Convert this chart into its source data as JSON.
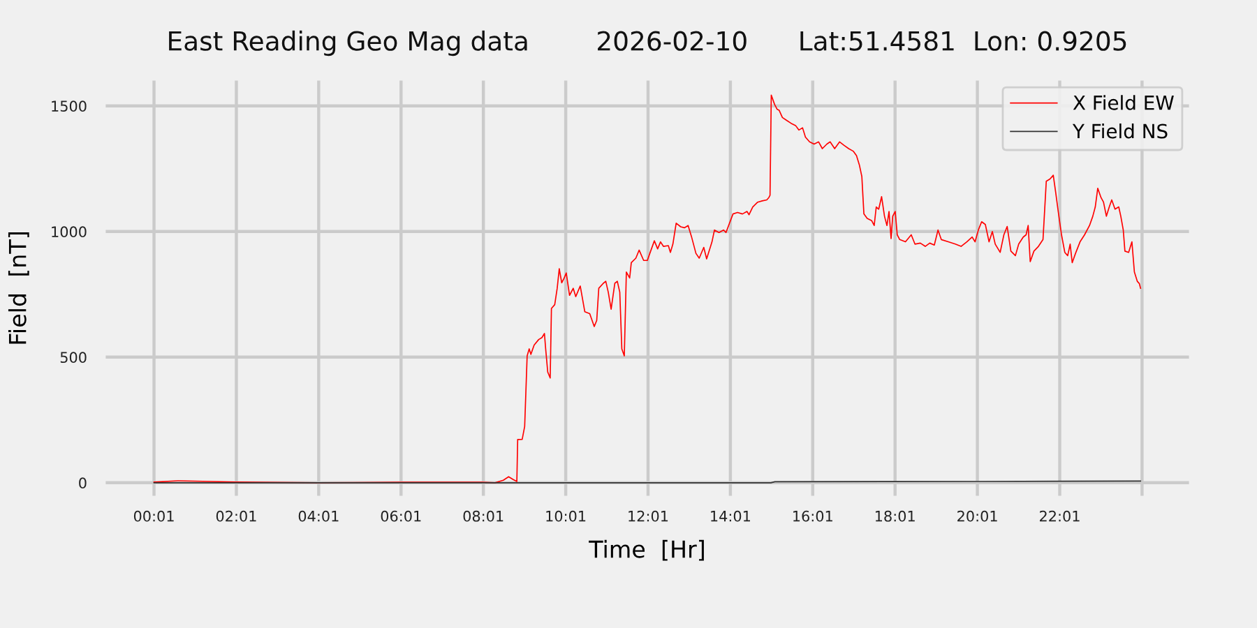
{
  "chart_data": {
    "type": "line",
    "title": "East Reading Geo Mag data        2026-02-10      Lat:51.4581  Lon: 0.9205",
    "xlabel": "Time  [Hr]",
    "ylabel": "Field  [nT]",
    "xlim": [
      -1.18,
      25.18
    ],
    "ylim": [
      -56,
      1605
    ],
    "xticks": [
      {
        "value": 0.0167,
        "label": "00:01"
      },
      {
        "value": 2.0167,
        "label": "02:01"
      },
      {
        "value": 4.0167,
        "label": "04:01"
      },
      {
        "value": 6.0167,
        "label": "06:01"
      },
      {
        "value": 8.0167,
        "label": "08:01"
      },
      {
        "value": 10.0167,
        "label": "10:01"
      },
      {
        "value": 12.0167,
        "label": "12:01"
      },
      {
        "value": 14.0167,
        "label": "14:01"
      },
      {
        "value": 16.0167,
        "label": "16:01"
      },
      {
        "value": 18.0167,
        "label": "18:01"
      },
      {
        "value": 20.0167,
        "label": "20:01"
      },
      {
        "value": 22.0167,
        "label": "22:01"
      },
      {
        "value": 24.0167,
        "label": null
      }
    ],
    "yticks": [
      0,
      500,
      1000,
      1500
    ],
    "grid": true,
    "legend": "top right",
    "series": [
      {
        "name": "X Field EW",
        "color": "#ff0000",
        "x": [
          0.0167,
          0.6,
          2.0,
          4.0,
          6.0,
          8.0,
          8.3,
          8.5,
          8.63,
          8.75,
          8.83,
          8.85,
          8.96,
          9.02,
          9.08,
          9.13,
          9.17,
          9.25,
          9.36,
          9.44,
          9.5,
          9.53,
          9.58,
          9.64,
          9.67,
          9.75,
          9.81,
          9.86,
          9.92,
          9.98,
          10.03,
          10.11,
          10.2,
          10.26,
          10.37,
          10.48,
          10.6,
          10.71,
          10.77,
          10.82,
          10.93,
          10.99,
          11.05,
          11.12,
          11.21,
          11.27,
          11.33,
          11.38,
          11.44,
          11.49,
          11.57,
          11.61,
          11.72,
          11.8,
          11.91,
          12.0,
          12.06,
          12.17,
          12.25,
          12.32,
          12.39,
          12.51,
          12.56,
          12.62,
          12.7,
          12.81,
          12.9,
          12.99,
          13.07,
          13.18,
          13.26,
          13.37,
          13.44,
          13.57,
          13.63,
          13.74,
          13.85,
          13.91,
          14.08,
          14.19,
          14.31,
          14.42,
          14.47,
          14.56,
          14.68,
          14.79,
          14.9,
          14.95,
          14.98,
          15.01,
          15.09,
          15.15,
          15.2,
          15.28,
          15.37,
          15.49,
          15.6,
          15.68,
          15.77,
          15.84,
          15.94,
          16.05,
          16.16,
          16.25,
          16.36,
          16.44,
          16.55,
          16.67,
          16.78,
          16.89,
          17.0,
          17.08,
          17.15,
          17.21,
          17.26,
          17.34,
          17.45,
          17.51,
          17.56,
          17.62,
          17.69,
          17.76,
          17.82,
          17.87,
          17.92,
          17.96,
          18.02,
          18.07,
          18.13,
          18.27,
          18.41,
          18.5,
          18.63,
          18.75,
          18.86,
          18.97,
          19.06,
          19.14,
          19.31,
          19.48,
          19.62,
          19.76,
          19.89,
          19.96,
          20.04,
          20.12,
          20.21,
          20.3,
          20.38,
          20.45,
          20.57,
          20.66,
          20.74,
          20.83,
          20.94,
          21.02,
          21.13,
          21.2,
          21.25,
          21.3,
          21.39,
          21.5,
          21.61,
          21.69,
          21.78,
          21.86,
          21.92,
          21.98,
          22.06,
          22.14,
          22.21,
          22.27,
          22.32,
          22.4,
          22.51,
          22.62,
          22.74,
          22.82,
          22.88,
          22.94,
          23.02,
          23.08,
          23.15,
          23.22,
          23.28,
          23.36,
          23.45,
          23.5,
          23.56,
          23.6,
          23.69,
          23.77,
          23.83,
          23.9,
          23.95,
          23.98
        ],
        "values": [
          3,
          8,
          3,
          0,
          2,
          2,
          0,
          10,
          24,
          12,
          5,
          172,
          173,
          224,
          505,
          533,
          511,
          548,
          570,
          578,
          594,
          533,
          441,
          417,
          694,
          709,
          774,
          852,
          796,
          815,
          835,
          746,
          774,
          741,
          783,
          681,
          673,
          622,
          646,
          774,
          794,
          802,
          759,
          691,
          794,
          802,
          759,
          533,
          505,
          839,
          815,
          876,
          894,
          926,
          885,
          885,
          913,
          963,
          931,
          959,
          941,
          944,
          917,
          950,
          1033,
          1019,
          1015,
          1024,
          981,
          913,
          894,
          937,
          891,
          959,
          1006,
          996,
          1006,
          996,
          1070,
          1076,
          1070,
          1080,
          1067,
          1098,
          1117,
          1122,
          1126,
          1135,
          1144,
          1543,
          1506,
          1487,
          1483,
          1454,
          1444,
          1431,
          1422,
          1404,
          1413,
          1376,
          1357,
          1348,
          1357,
          1330,
          1348,
          1357,
          1330,
          1357,
          1343,
          1330,
          1320,
          1302,
          1265,
          1219,
          1070,
          1052,
          1043,
          1024,
          1098,
          1089,
          1139,
          1061,
          1024,
          1080,
          972,
          1061,
          1080,
          987,
          968,
          959,
          987,
          950,
          954,
          941,
          954,
          946,
          1006,
          968,
          959,
          950,
          941,
          959,
          978,
          959,
          1006,
          1039,
          1028,
          959,
          1000,
          950,
          917,
          987,
          1020,
          922,
          904,
          950,
          978,
          987,
          1024,
          880,
          922,
          941,
          968,
          1200,
          1209,
          1224,
          1154,
          1080,
          987,
          917,
          904,
          950,
          876,
          913,
          959,
          987,
          1024,
          1061,
          1098,
          1172,
          1135,
          1117,
          1061,
          1098,
          1126,
          1089,
          1098,
          1061,
          1006,
          922,
          917,
          959,
          839,
          802,
          793,
          774
        ]
      },
      {
        "name": "Y Field NS",
        "color": "#333333",
        "x": [
          0.0167,
          8.0,
          15.0,
          15.1,
          20.0,
          23.98
        ],
        "values": [
          0,
          0,
          0,
          4,
          5,
          7
        ]
      }
    ]
  }
}
